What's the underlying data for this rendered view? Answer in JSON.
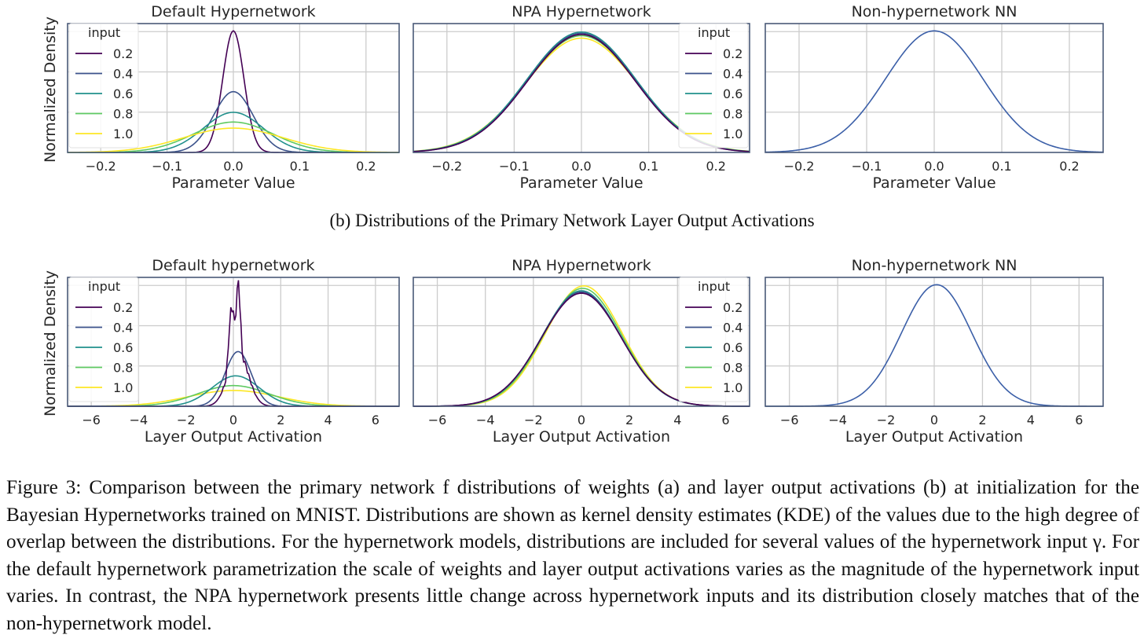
{
  "subcaption_b": "(b) Distributions of the Primary Network Layer Output Activations",
  "caption": "Figure 3: Comparison between the primary network f distributions of weights (a) and layer output activations (b) at initialization for the Bayesian Hypernetworks trained on MNIST. Distributions are shown as kernel density estimates (KDE) of the values due to the high degree of overlap between the distributions.  For the hypernetwork models, distributions are included for several values of the hypernetwork input γ. For the default hypernetwork parametrization the scale of weights and layer output activations varies as the magnitude of the hypernetwork input varies. In contrast, the NPA hypernetwork presents little change across hypernetwork inputs and its distribution closely matches that of the non-hypernetwork model.",
  "legend_title": "input",
  "input_colors": {
    "0.2": "#440154",
    "0.4": "#3b528b",
    "0.6": "#21908c",
    "0.8": "#5ec962",
    "1.0": "#fde725"
  },
  "single_color": "#3b5fa8",
  "chart_data": [
    {
      "type": "line",
      "title": "Default Hypernetwork",
      "xlabel": "Parameter Value",
      "ylabel": "Normalized Density",
      "xlim": [
        -0.25,
        0.25
      ],
      "xticks": [
        -0.2,
        -0.1,
        0.0,
        0.1,
        0.2
      ],
      "xtick_labels": [
        "−0.2",
        "−0.1",
        "0.0",
        "0.1",
        "0.2"
      ],
      "ylim": [
        0,
        1.06
      ],
      "grid": true,
      "legend": "upper left",
      "series": [
        {
          "name": "0.2",
          "shape": "gauss",
          "center": 0.0,
          "sigma": 0.016,
          "peak": 1.0
        },
        {
          "name": "0.4",
          "shape": "gauss",
          "center": 0.0,
          "sigma": 0.03,
          "peak": 0.5
        },
        {
          "name": "0.6",
          "shape": "gauss",
          "center": 0.0,
          "sigma": 0.045,
          "peak": 0.33
        },
        {
          "name": "0.8",
          "shape": "gauss",
          "center": 0.0,
          "sigma": 0.06,
          "peak": 0.25
        },
        {
          "name": "1.0",
          "shape": "gauss",
          "center": 0.0,
          "sigma": 0.075,
          "peak": 0.2
        }
      ]
    },
    {
      "type": "line",
      "title": "NPA Hypernetwork",
      "xlabel": "Parameter Value",
      "ylabel": "",
      "xlim": [
        -0.25,
        0.25
      ],
      "xticks": [
        -0.2,
        -0.1,
        0.0,
        0.1,
        0.2
      ],
      "xtick_labels": [
        "−0.2",
        "−0.1",
        "0.0",
        "0.1",
        "0.2"
      ],
      "ylim": [
        0,
        1.06
      ],
      "grid": true,
      "legend": "upper right",
      "series": [
        {
          "name": "1.0",
          "shape": "gauss",
          "center": 0.0,
          "sigma": 0.083,
          "peak": 0.94
        },
        {
          "name": "0.8",
          "shape": "gauss",
          "center": 0.0,
          "sigma": 0.082,
          "peak": 0.96
        },
        {
          "name": "0.6",
          "shape": "gauss",
          "center": 0.0,
          "sigma": 0.081,
          "peak": 0.99
        },
        {
          "name": "0.4",
          "shape": "gauss",
          "center": 0.0,
          "sigma": 0.08,
          "peak": 0.98
        },
        {
          "name": "0.2",
          "shape": "gauss",
          "center": 0.0,
          "sigma": 0.08,
          "peak": 0.97
        }
      ]
    },
    {
      "type": "line",
      "title": "Non-hypernetwork NN",
      "xlabel": "Parameter Value",
      "ylabel": "",
      "xlim": [
        -0.25,
        0.25
      ],
      "xticks": [
        -0.2,
        -0.1,
        0.0,
        0.1,
        0.2
      ],
      "xtick_labels": [
        "−0.2",
        "−0.1",
        "0.0",
        "0.1",
        "0.2"
      ],
      "ylim": [
        0,
        1.06
      ],
      "grid": true,
      "legend": "none",
      "series": [
        {
          "name": "",
          "shape": "gauss",
          "center": 0.0,
          "sigma": 0.072,
          "peak": 1.0
        }
      ]
    },
    {
      "type": "line",
      "title": "Default hypernetwork",
      "xlabel": "Layer Output Activation",
      "ylabel": "Normalized Density",
      "xlim": [
        -7,
        7
      ],
      "xticks": [
        -6,
        -4,
        -2,
        0,
        2,
        4,
        6
      ],
      "xtick_labels": [
        "−6",
        "−4",
        "−2",
        "0",
        "2",
        "4",
        "6"
      ],
      "ylim": [
        0,
        1.06
      ],
      "grid": true,
      "legend": "upper left",
      "series": [
        {
          "name": "1.0",
          "shape": "gauss",
          "center": 0.0,
          "sigma": 1.9,
          "peak": 0.13
        },
        {
          "name": "0.8",
          "shape": "gauss",
          "center": 0.0,
          "sigma": 1.5,
          "peak": 0.17
        },
        {
          "name": "0.6",
          "shape": "gauss",
          "center": 0.1,
          "sigma": 1.0,
          "peak": 0.25
        },
        {
          "name": "0.4",
          "shape": "gauss",
          "center": 0.2,
          "sigma": 0.55,
          "peak": 0.45
        },
        {
          "name": "0.2",
          "shape": "bimodal",
          "center": 0.2,
          "sigma": 0.3,
          "peak": 1.0
        }
      ]
    },
    {
      "type": "line",
      "title": "NPA Hypernetwork",
      "xlabel": "Layer Output Activation",
      "ylabel": "",
      "xlim": [
        -7,
        7
      ],
      "xticks": [
        -6,
        -4,
        -2,
        0,
        2,
        4,
        6
      ],
      "xtick_labels": [
        "−6",
        "−4",
        "−2",
        "0",
        "2",
        "4",
        "6"
      ],
      "ylim": [
        0,
        1.06
      ],
      "grid": true,
      "legend": "upper right",
      "series": [
        {
          "name": "1.0",
          "shape": "gauss",
          "center": 0.1,
          "sigma": 1.6,
          "peak": 0.99
        },
        {
          "name": "0.8",
          "shape": "gauss",
          "center": 0.05,
          "sigma": 1.62,
          "peak": 0.97
        },
        {
          "name": "0.6",
          "shape": "gauss",
          "center": 0.0,
          "sigma": 1.64,
          "peak": 0.95
        },
        {
          "name": "0.4",
          "shape": "gauss",
          "center": 0.0,
          "sigma": 1.65,
          "peak": 0.94
        },
        {
          "name": "0.2",
          "shape": "gauss",
          "center": 0.0,
          "sigma": 1.66,
          "peak": 0.93
        }
      ]
    },
    {
      "type": "line",
      "title": "Non-hypernetwork NN",
      "xlabel": "Layer Output Activation",
      "ylabel": "",
      "xlim": [
        -7,
        7
      ],
      "xticks": [
        -6,
        -4,
        -2,
        0,
        2,
        4,
        6
      ],
      "xtick_labels": [
        "−6",
        "−4",
        "−2",
        "0",
        "2",
        "4",
        "6"
      ],
      "ylim": [
        0,
        1.06
      ],
      "grid": true,
      "legend": "none",
      "series": [
        {
          "name": "",
          "shape": "gauss",
          "center": 0.1,
          "sigma": 1.45,
          "peak": 1.0
        }
      ]
    }
  ]
}
